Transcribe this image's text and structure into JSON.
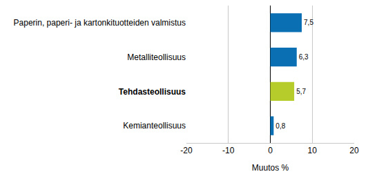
{
  "chart_data": {
    "type": "bar",
    "orientation": "horizontal",
    "categories": [
      "Paperin, paperi- ja kartonkituotteiden valmistus",
      "Metalliteollisuus",
      "Tehdasteollisuus",
      "Kemianteollisuus"
    ],
    "values": [
      7.5,
      6.3,
      5.7,
      0.8
    ],
    "value_labels": [
      "7,5",
      "6,3",
      "5,7",
      "0,8"
    ],
    "data_labels": true,
    "colors": [
      "#0a6fb3",
      "#0a6fb3",
      "#b6cc2b",
      "#0a6fb3"
    ],
    "x_label": "Muutos %",
    "xlim": [
      -20,
      20
    ],
    "xticks": [
      -20,
      -10,
      0,
      10,
      20
    ],
    "grid": true
  }
}
